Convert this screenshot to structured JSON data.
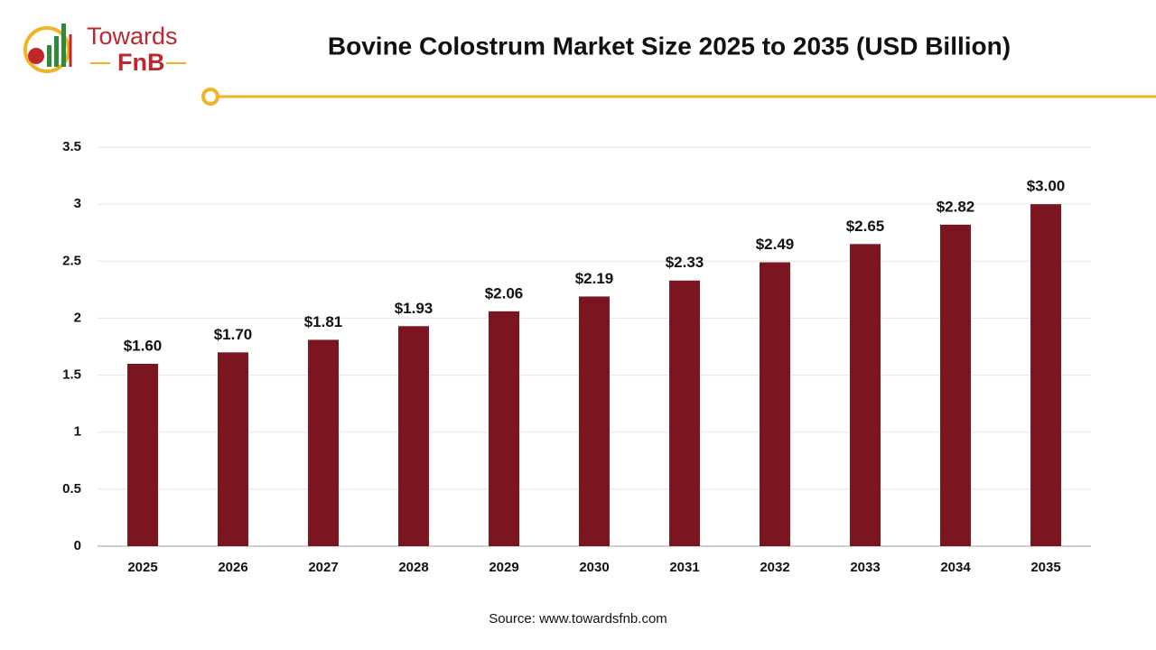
{
  "logo": {
    "line1": "Towards",
    "line2": "FnB"
  },
  "chart_data": {
    "type": "bar",
    "title": "Bovine Colostrum Market Size 2025 to 2035 (USD Billion)",
    "categories": [
      "2025",
      "2026",
      "2027",
      "2028",
      "2029",
      "2030",
      "2031",
      "2032",
      "2033",
      "2034",
      "2035"
    ],
    "values": [
      1.6,
      1.7,
      1.81,
      1.93,
      2.06,
      2.19,
      2.33,
      2.49,
      2.65,
      2.82,
      3.0
    ],
    "value_labels": [
      "$1.60",
      "$1.70",
      "$1.81",
      "$1.93",
      "$2.06",
      "$2.19",
      "$2.33",
      "$2.49",
      "$2.65",
      "$2.82",
      "$3.00"
    ],
    "color": "#7b1620",
    "ylim": [
      0,
      3.5
    ],
    "yticks": [
      0,
      0.5,
      1,
      1.5,
      2,
      2.5,
      3,
      3.5
    ],
    "grid": true,
    "source": "Source: www.towardsfnb.com"
  }
}
